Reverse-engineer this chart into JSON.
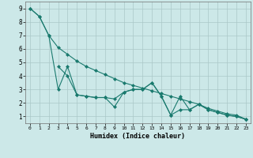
{
  "xlabel": "Humidex (Indice chaleur)",
  "bg_color": "#cce8e8",
  "grid_color": "#aac8c8",
  "line_color": "#1a7a6e",
  "xlim": [
    -0.5,
    23.5
  ],
  "ylim": [
    0.5,
    9.5
  ],
  "xtick_labels": [
    "0",
    "1",
    "2",
    "3",
    "4",
    "5",
    "6",
    "7",
    "8",
    "9",
    "10",
    "11",
    "12",
    "13",
    "14",
    "15",
    "16",
    "17",
    "18",
    "19",
    "20",
    "21",
    "22",
    "23"
  ],
  "yticks": [
    1,
    2,
    3,
    4,
    5,
    6,
    7,
    8,
    9
  ],
  "series": [
    {
      "x": [
        0,
        1,
        2,
        3,
        4,
        5,
        6,
        7,
        8,
        9,
        10,
        11,
        12,
        13,
        14,
        15,
        16,
        17,
        18,
        19,
        20,
        21,
        22,
        23
      ],
      "y": [
        9.0,
        8.4,
        7.0,
        6.1,
        5.6,
        5.1,
        4.7,
        4.4,
        4.1,
        3.8,
        3.5,
        3.3,
        3.1,
        2.9,
        2.7,
        2.5,
        2.3,
        2.1,
        1.9,
        1.6,
        1.4,
        1.2,
        1.1,
        0.8
      ],
      "linestyle": "-"
    },
    {
      "x": [
        0,
        1,
        2,
        3,
        4,
        5,
        6,
        7,
        8,
        9,
        10,
        11,
        12,
        13,
        14,
        15,
        16,
        17,
        18,
        19,
        20,
        21,
        22,
        23
      ],
      "y": [
        9.0,
        8.4,
        7.0,
        3.0,
        4.7,
        2.6,
        2.5,
        2.4,
        2.4,
        1.7,
        2.8,
        3.0,
        3.0,
        3.5,
        2.5,
        1.1,
        2.5,
        1.5,
        1.9,
        1.5,
        1.3,
        1.1,
        1.0,
        0.8
      ],
      "linestyle": "-"
    },
    {
      "x": [
        3,
        4,
        5,
        6,
        7,
        8,
        9,
        10,
        11,
        12,
        13,
        14,
        15,
        16,
        17,
        18,
        19,
        20,
        21,
        22,
        23
      ],
      "y": [
        4.7,
        4.0,
        2.6,
        2.5,
        2.4,
        2.4,
        2.3,
        2.8,
        3.0,
        3.0,
        3.5,
        2.5,
        1.1,
        1.5,
        1.5,
        1.9,
        1.5,
        1.3,
        1.1,
        1.0,
        0.8
      ],
      "linestyle": "-"
    }
  ],
  "marker": "D",
  "markersize": 2.0,
  "linewidth": 0.8
}
